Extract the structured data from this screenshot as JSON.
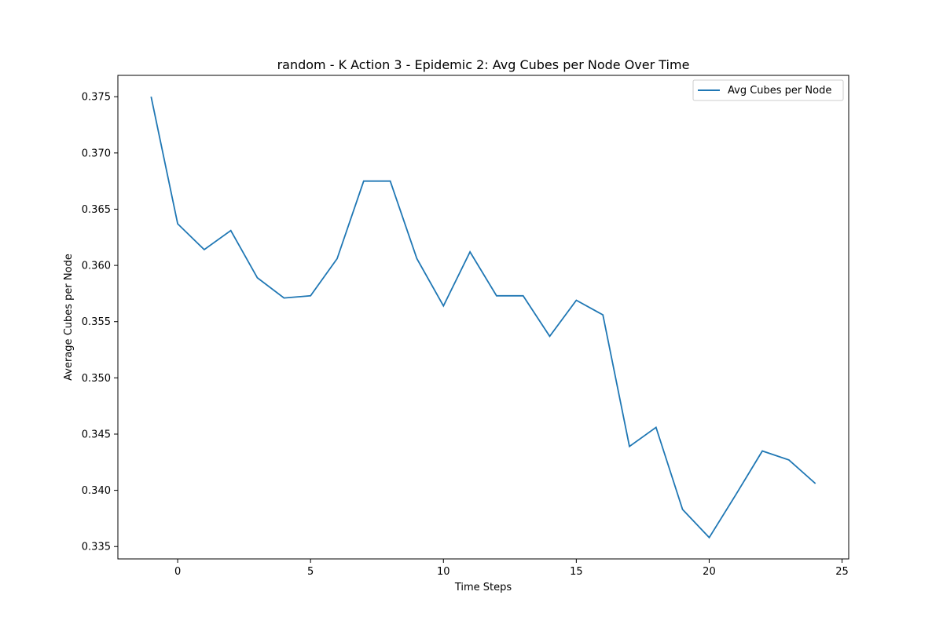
{
  "chart_data": {
    "type": "line",
    "title": "random - K Action 3 - Epidemic 2: Avg Cubes per Node Over Time",
    "xlabel": "Time Steps",
    "ylabel": "Average Cubes per Node",
    "xlim": [
      -2.25,
      25.25
    ],
    "ylim": [
      0.3339,
      0.3769
    ],
    "xticks": [
      0,
      5,
      10,
      15,
      20,
      25
    ],
    "yticks": [
      0.335,
      0.34,
      0.345,
      0.35,
      0.355,
      0.36,
      0.365,
      0.37,
      0.375
    ],
    "xtick_labels": [
      "0",
      "5",
      "10",
      "15",
      "20",
      "25"
    ],
    "ytick_labels": [
      "0.335",
      "0.340",
      "0.345",
      "0.350",
      "0.355",
      "0.360",
      "0.365",
      "0.370",
      "0.375"
    ],
    "grid": false,
    "legend_position": "top-right",
    "color": "#1f77b4",
    "series": [
      {
        "name": "Avg Cubes per Node",
        "x": [
          -1,
          0,
          1,
          2,
          3,
          4,
          5,
          6,
          7,
          8,
          9,
          10,
          11,
          12,
          13,
          14,
          15,
          16,
          17,
          18,
          19,
          20,
          21,
          22,
          23,
          24
        ],
        "y": [
          0.375,
          0.3637,
          0.3614,
          0.3631,
          0.3589,
          0.3571,
          0.3573,
          0.3606,
          0.3675,
          0.3675,
          0.3606,
          0.3564,
          0.3612,
          0.3573,
          0.3573,
          0.3537,
          0.3569,
          0.3556,
          0.3439,
          0.3456,
          0.3383,
          0.3358,
          0.3396,
          0.3435,
          0.3427,
          0.3406
        ]
      }
    ]
  }
}
